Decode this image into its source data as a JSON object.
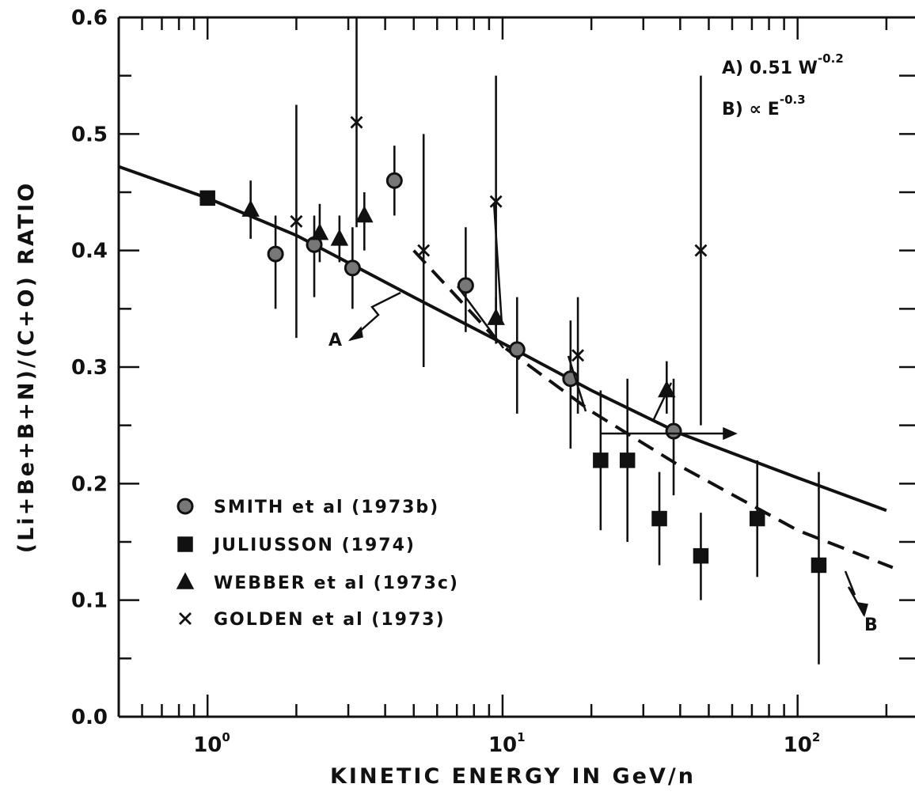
{
  "chart_data": {
    "type": "scatter",
    "title": "",
    "xlabel": "KINETIC ENERGY IN GeV/n",
    "ylabel": "(Li+Be+B+N)/(C+O) RATIO",
    "xscale": "log",
    "xlim": [
      0.5,
      250
    ],
    "ylim": [
      0.0,
      0.6
    ],
    "grid": false,
    "legend_position": "bottom-left",
    "x_tick_labels": [
      {
        "value": 1,
        "base": "10",
        "exp": "0"
      },
      {
        "value": 10,
        "base": "10",
        "exp": "1"
      },
      {
        "value": 100,
        "base": "10",
        "exp": "2"
      }
    ],
    "y_ticks": [
      0.0,
      0.1,
      0.2,
      0.3,
      0.4,
      0.5,
      0.6
    ],
    "y_tick_labels": [
      "0.0",
      "0.1",
      "0.2",
      "0.3",
      "0.4",
      "0.5",
      "0.6"
    ],
    "series": [
      {
        "name": "SMITH et al (1973b)",
        "marker": "circle",
        "points": [
          {
            "x": 1.7,
            "y": 0.397,
            "lo": 0.35,
            "hi": 0.43
          },
          {
            "x": 2.3,
            "y": 0.405,
            "lo": 0.36,
            "hi": 0.43
          },
          {
            "x": 3.1,
            "y": 0.385,
            "lo": 0.35,
            "hi": 0.42
          },
          {
            "x": 4.3,
            "y": 0.46,
            "lo": 0.43,
            "hi": 0.49
          },
          {
            "x": 7.5,
            "y": 0.37,
            "lo": 0.33,
            "hi": 0.42
          },
          {
            "x": 11.2,
            "y": 0.315,
            "lo": 0.26,
            "hi": 0.36
          },
          {
            "x": 17.0,
            "y": 0.29,
            "lo": 0.23,
            "hi": 0.34
          },
          {
            "x": 38.0,
            "y": 0.245,
            "lo": 0.19,
            "hi": 0.29
          }
        ]
      },
      {
        "name": "JULIUSSON (1974)",
        "marker": "square",
        "points": [
          {
            "x": 1.0,
            "y": 0.445,
            "lo": 0.44,
            "hi": 0.45
          },
          {
            "x": 21.5,
            "y": 0.22,
            "lo": 0.16,
            "hi": 0.28
          },
          {
            "x": 26.5,
            "y": 0.22,
            "lo": 0.15,
            "hi": 0.29
          },
          {
            "x": 34.0,
            "y": 0.17,
            "lo": 0.13,
            "hi": 0.21
          },
          {
            "x": 47.0,
            "y": 0.138,
            "lo": 0.1,
            "hi": 0.175
          },
          {
            "x": 73.0,
            "y": 0.17,
            "lo": 0.12,
            "hi": 0.22
          },
          {
            "x": 118.0,
            "y": 0.13,
            "lo": 0.045,
            "hi": 0.21
          }
        ]
      },
      {
        "name": "WEBBER et al (1973c)",
        "marker": "triangle",
        "points": [
          {
            "x": 1.4,
            "y": 0.435,
            "lo": 0.41,
            "hi": 0.46
          },
          {
            "x": 2.4,
            "y": 0.415,
            "lo": 0.39,
            "hi": 0.44
          },
          {
            "x": 2.8,
            "y": 0.41,
            "lo": 0.39,
            "hi": 0.43
          },
          {
            "x": 3.4,
            "y": 0.43,
            "lo": 0.4,
            "hi": 0.45
          },
          {
            "x": 9.5,
            "y": 0.342,
            "lo": 0.32,
            "hi": 0.36
          },
          {
            "x": 36.0,
            "y": 0.28,
            "lo": 0.26,
            "hi": 0.305
          }
        ]
      },
      {
        "name": "GOLDEN et al (1973)",
        "marker": "x",
        "points": [
          {
            "x": 2.0,
            "y": 0.425,
            "lo": 0.325,
            "hi": 0.525
          },
          {
            "x": 3.2,
            "y": 0.51,
            "lo": 0.42,
            "hi": 0.6
          },
          {
            "x": 5.4,
            "y": 0.4,
            "lo": 0.3,
            "hi": 0.5
          },
          {
            "x": 9.5,
            "y": 0.442,
            "lo": 0.33,
            "hi": 0.55
          },
          {
            "x": 18.0,
            "y": 0.31,
            "lo": 0.26,
            "hi": 0.36
          },
          {
            "x": 47.0,
            "y": 0.4,
            "lo": 0.25,
            "hi": 0.55
          }
        ]
      }
    ],
    "fits": [
      {
        "label": "A",
        "formula": "A) 0.51 W",
        "exponent": "-0.2",
        "style": "solid",
        "points": [
          [
            0.5,
            0.472
          ],
          [
            1,
            0.445
          ],
          [
            2,
            0.413
          ],
          [
            5,
            0.36
          ],
          [
            11,
            0.315
          ],
          [
            20,
            0.28
          ],
          [
            40,
            0.243
          ],
          [
            100,
            0.205
          ],
          [
            200,
            0.177
          ]
        ]
      },
      {
        "label": "B",
        "formula": "B) ∝ E",
        "exponent": "-0.3",
        "style": "dashed",
        "points": [
          [
            5,
            0.4
          ],
          [
            10,
            0.318
          ],
          [
            20,
            0.262
          ],
          [
            40,
            0.215
          ],
          [
            100,
            0.16
          ],
          [
            210,
            0.128
          ]
        ]
      }
    ]
  }
}
